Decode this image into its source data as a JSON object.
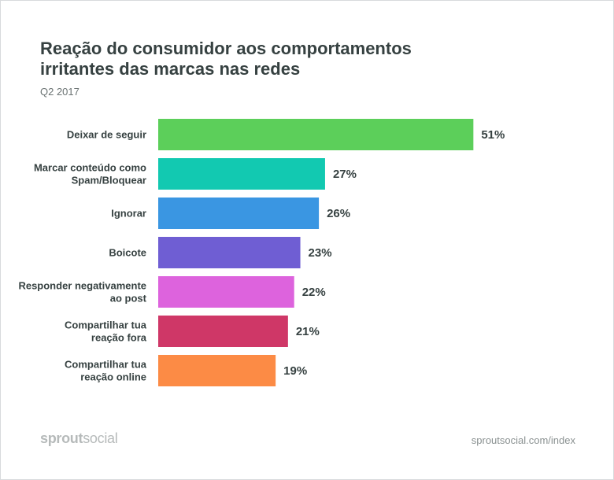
{
  "chart_data": {
    "type": "bar",
    "orientation": "horizontal",
    "title": "Reação do consumidor aos comportamentos irritantes das marcas nas redes",
    "subtitle": "Q2 2017",
    "categories": [
      [
        "Deixar de seguir"
      ],
      [
        "Marcar conteúdo como",
        "Spam/Bloquear"
      ],
      [
        "Ignorar"
      ],
      [
        "Boicote"
      ],
      [
        "Responder negativamente",
        "ao post"
      ],
      [
        "Compartilhar tua",
        "reação fora"
      ],
      [
        "Compartilhar tua",
        "reação online"
      ]
    ],
    "values": [
      51,
      27,
      26,
      23,
      22,
      21,
      19
    ],
    "value_labels": [
      "51%",
      "27%",
      "26%",
      "23%",
      "22%",
      "21%",
      "19%"
    ],
    "colors": [
      "#5ccf5a",
      "#12c9b1",
      "#3a96e2",
      "#6f5ed3",
      "#dd63dd",
      "#cf3767",
      "#fc8b45"
    ],
    "xlim": [
      0,
      100
    ],
    "grid": false,
    "legend": "none"
  },
  "footer": {
    "logo_part1": "sprout",
    "logo_part2": "social",
    "url": "sproutsocial.com/index"
  }
}
